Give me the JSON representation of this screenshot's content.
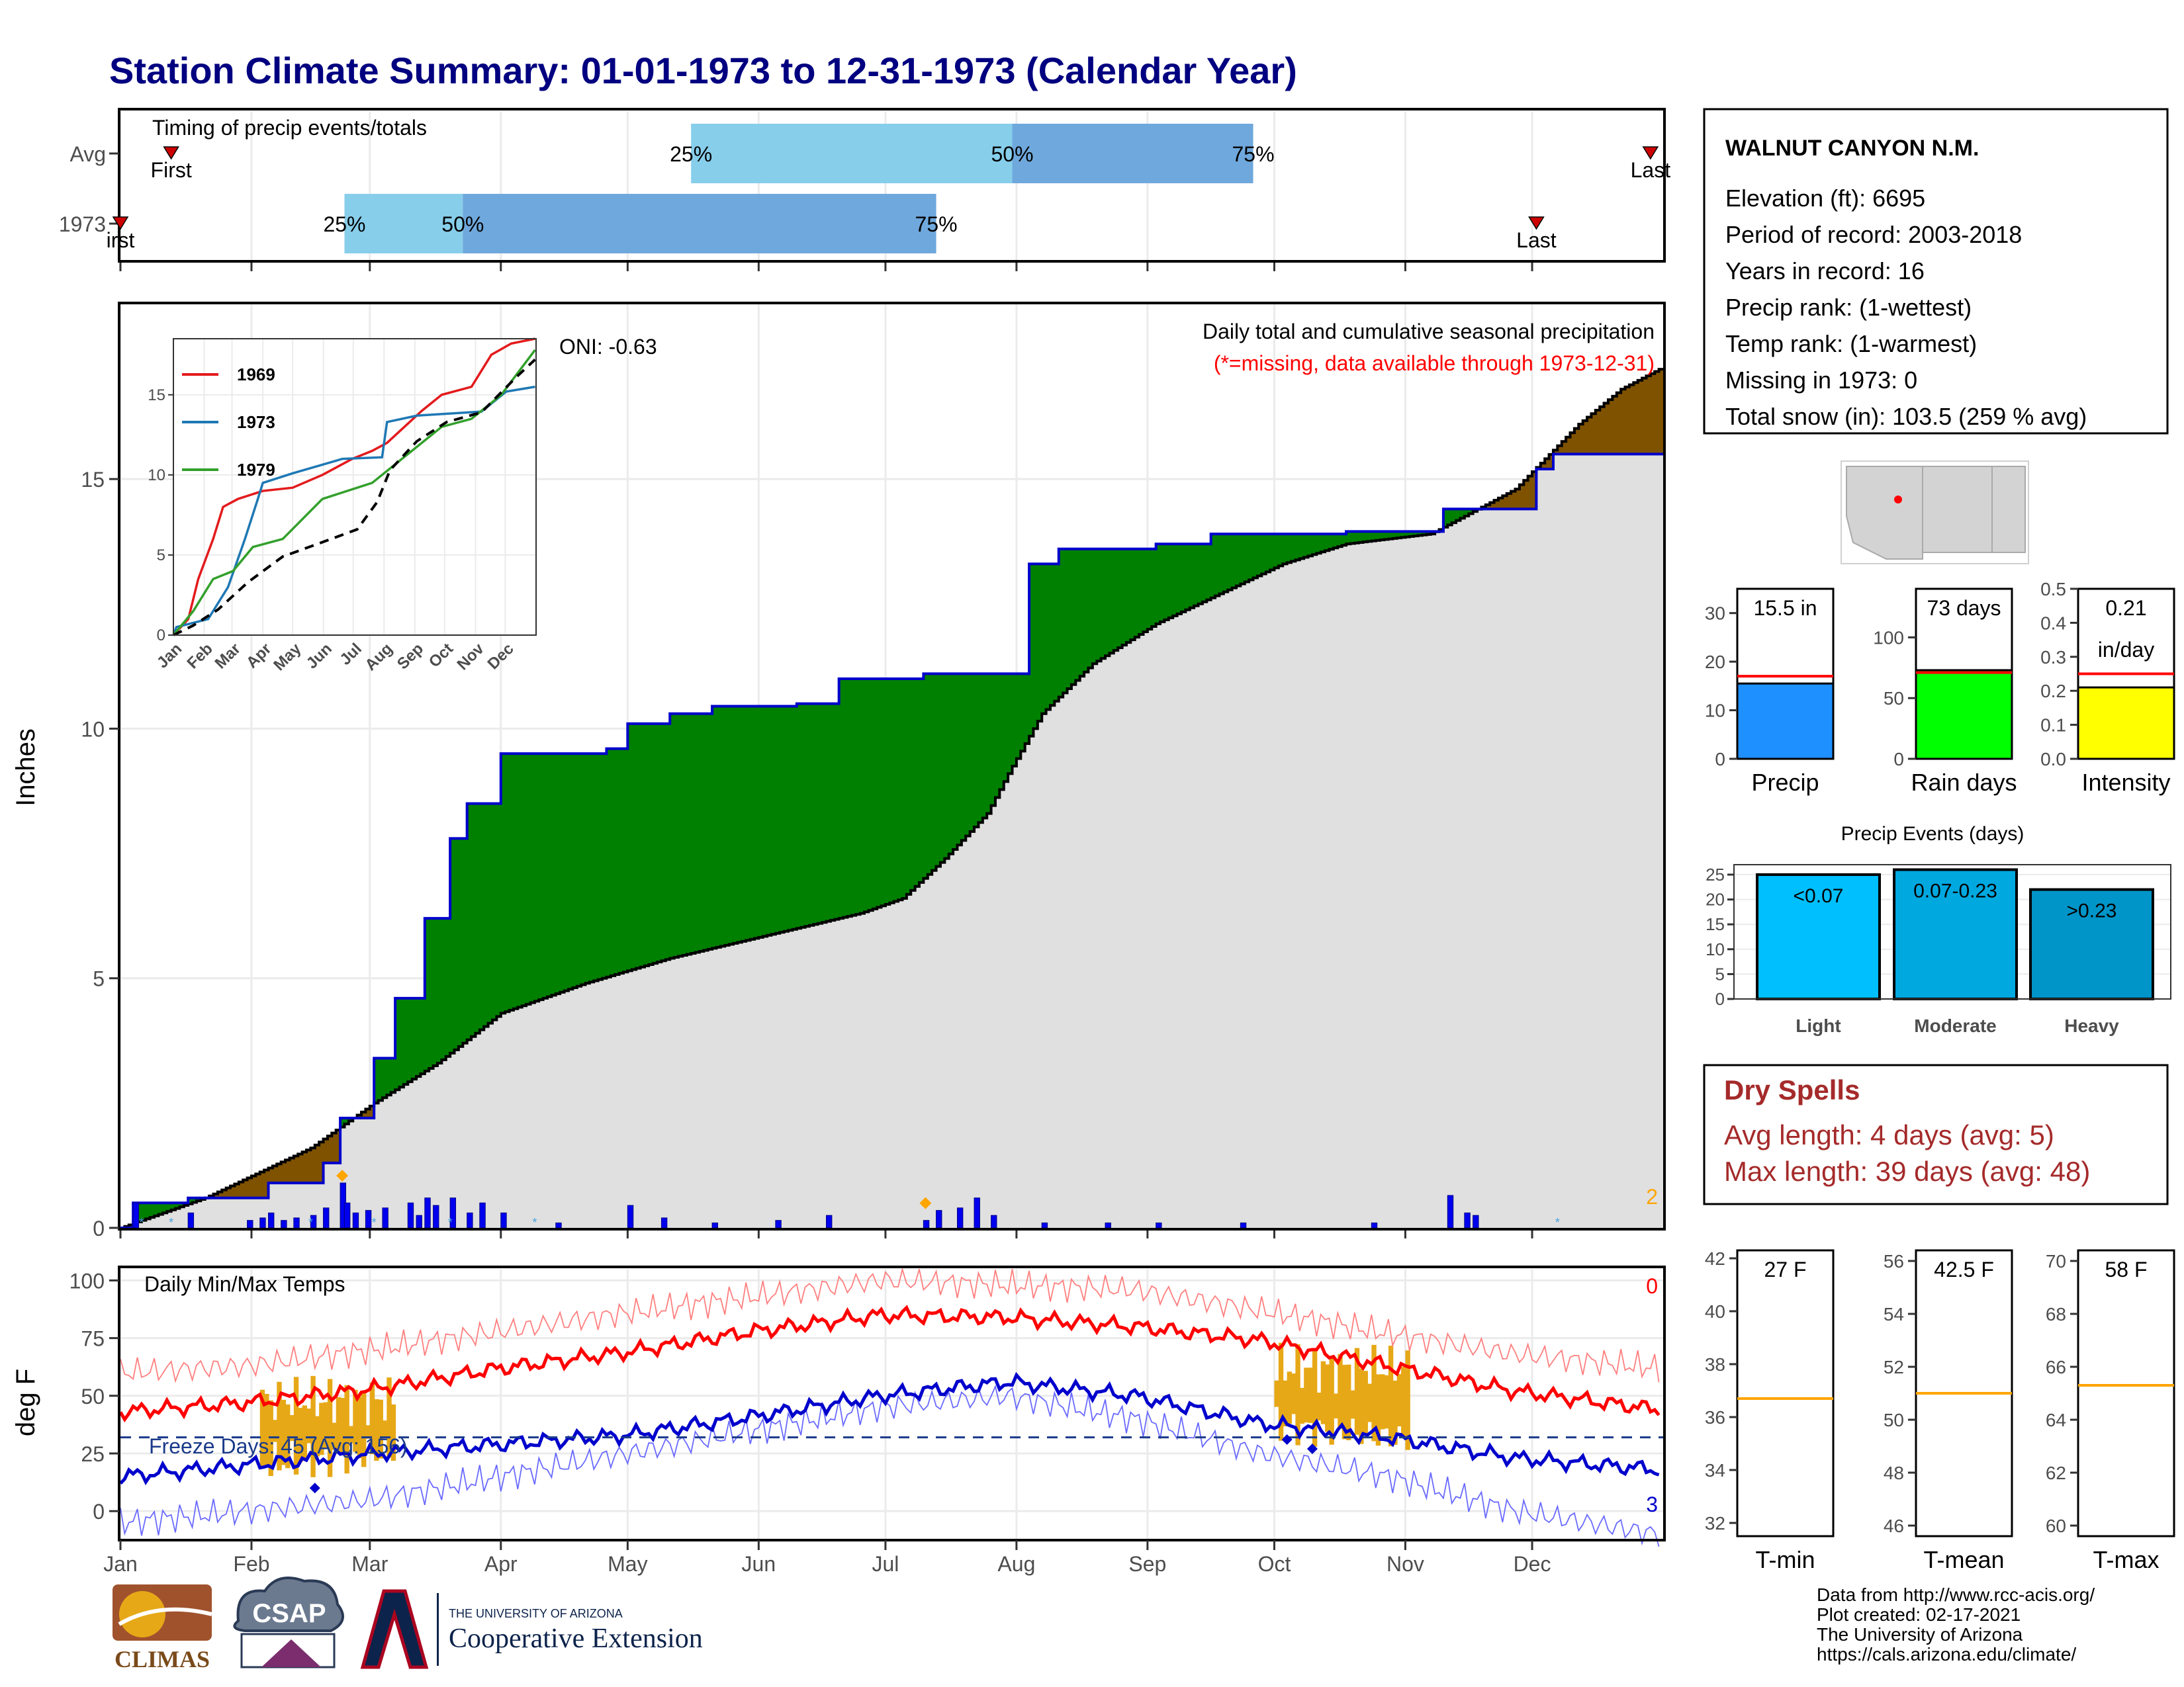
{
  "title": "Station Climate Summary: 01-01-1973 to 12-31-1973 (Calendar Year)",
  "station": {
    "name": "WALNUT CANYON N.M.",
    "lines": [
      "Elevation (ft): 6695",
      "Period of record: 2003-2018",
      "Years in record: 16",
      "Precip rank:  (1-wettest)",
      "Temp rank:  (1-warmest)",
      "Missing in 1973: 0",
      "Total snow (in): 103.5 (259 % avg)"
    ]
  },
  "colors": {
    "title": "#000080",
    "wet": "#008000",
    "dry": "#7f5200",
    "avg_fill": "#e0e0e0",
    "cum_line": "#0000cc",
    "tmax": "#ff0000",
    "tmin": "#0000cc",
    "freeze": "#e6a817",
    "timing_light": "#87ceeb",
    "timing_dark": "#6fa8dc",
    "dry_spells": "#a52a2a",
    "marker_red": "#cc0000",
    "orange": "#ffa500"
  },
  "months": [
    "Jan",
    "Feb",
    "Mar",
    "Apr",
    "May",
    "Jun",
    "Jul",
    "Aug",
    "Sep",
    "Oct",
    "Nov",
    "Dec"
  ],
  "timing": {
    "title": "Timing of precip events/totals",
    "rows": [
      {
        "label": "Avg",
        "first_day": 12,
        "q25": 135,
        "q50": 211,
        "q75": 268,
        "last_day": 362,
        "first_text": "First",
        "last_text": "Last",
        "p25_text": "25%",
        "p50_text": "50%",
        "p75_text": "75%"
      },
      {
        "label": "1973",
        "first_day": 0,
        "q25": 53,
        "q50": 81,
        "q75": 193,
        "last_day": 335,
        "first_text": "irst",
        "last_text": "Last",
        "p25_text": "25%",
        "p50_text": "50%",
        "p75_text": "75%"
      }
    ]
  },
  "precip_panel": {
    "ylabel": "Inches",
    "oni": "ONI: -0.63",
    "annotation1": "Daily total and cumulative seasonal precipitation",
    "annotation2": "(*=missing, data available through 1973-12-31)",
    "corner_count": "2",
    "yticks": [
      "0",
      "5",
      "10",
      "15"
    ]
  },
  "inset": {
    "series_names": [
      "1969",
      "1973",
      "1979"
    ],
    "series_colors": [
      "#e31a1c",
      "#1f78b4",
      "#33a02c"
    ],
    "yticks": [
      "0",
      "5",
      "10",
      "15"
    ]
  },
  "temp_panel": {
    "ylabel": "deg F",
    "label": "Daily Min/Max Temps",
    "freeze_text": "Freeze Days: 45 (Avg: 156)",
    "corner_top": "0",
    "corner_bottom": "3",
    "yticks": [
      "0",
      "25",
      "50",
      "75",
      "100"
    ]
  },
  "mini_bars": [
    {
      "label": "Precip",
      "value_text": "15.5 in",
      "value": 15.5,
      "avg": 17,
      "ymax": 35,
      "color": "#1e90ff",
      "yticks": [
        "0",
        "10",
        "20",
        "30"
      ]
    },
    {
      "label": "Rain days",
      "value_text": "73 days",
      "value": 73,
      "avg": 71,
      "ymax": 140,
      "color": "#00ff00",
      "yticks": [
        "0",
        "50",
        "100"
      ]
    },
    {
      "label": "Intensity",
      "value_text": "0.21",
      "value_text2": "in/day",
      "value": 0.21,
      "avg": 0.25,
      "ymax": 0.5,
      "color": "#ffff00",
      "yticks": [
        "0.0",
        "0.1",
        "0.2",
        "0.3",
        "0.4",
        "0.5"
      ]
    }
  ],
  "events": {
    "title": "Precip Events (days)",
    "categories": [
      "Light",
      "Moderate",
      "Heavy"
    ],
    "bar_labels": [
      "<0.07",
      "0.07-0.23",
      ">0.23"
    ],
    "values": [
      25,
      26,
      22
    ],
    "yticks": [
      "0",
      "5",
      "10",
      "15",
      "20",
      "25"
    ]
  },
  "dry_spells": {
    "title": "Dry Spells",
    "line1": "Avg length: 4 days (avg: 5)",
    "line2": "Max length: 39 days (avg: 48)"
  },
  "temp_boxes": [
    {
      "label": "T-min",
      "value_text": "27 F",
      "yticks": [
        "32",
        "34",
        "36",
        "38",
        "40",
        "42"
      ]
    },
    {
      "label": "T-mean",
      "value_text": "42.5 F",
      "yticks": [
        "46",
        "48",
        "50",
        "52",
        "54",
        "56"
      ]
    },
    {
      "label": "T-max",
      "value_text": "58 F",
      "yticks": [
        "60",
        "62",
        "64",
        "66",
        "68",
        "70"
      ]
    }
  ],
  "footer": {
    "lines": [
      "Data from http://www.rcc-acis.org/",
      "Plot created: 02-17-2021",
      "The University of Arizona",
      "https://cals.arizona.edu/climate/"
    ],
    "climas": "CLIMAS",
    "csap": "CSAP",
    "ua_small": "THE UNIVERSITY OF ARIZONA",
    "ua_big": "Cooperative Extension"
  },
  "chart_data": {
    "type": "area",
    "title": "Daily total and cumulative seasonal precipitation",
    "ylabel": "Inches",
    "ylim": [
      0,
      18.5
    ],
    "x_unit": "day of year",
    "cumulative_1973": [
      [
        0,
        0
      ],
      [
        3,
        0.5
      ],
      [
        16,
        0.6
      ],
      [
        35,
        0.9
      ],
      [
        48,
        1.3
      ],
      [
        52,
        2.2
      ],
      [
        60,
        3.4
      ],
      [
        65,
        4.6
      ],
      [
        72,
        6.2
      ],
      [
        78,
        7.8
      ],
      [
        82,
        8.5
      ],
      [
        90,
        9.5
      ],
      [
        115,
        9.6
      ],
      [
        120,
        10.1
      ],
      [
        130,
        10.3
      ],
      [
        140,
        10.45
      ],
      [
        160,
        10.5
      ],
      [
        170,
        11.0
      ],
      [
        190,
        11.1
      ],
      [
        210,
        11.1
      ],
      [
        215,
        13.3
      ],
      [
        222,
        13.6
      ],
      [
        245,
        13.7
      ],
      [
        258,
        13.9
      ],
      [
        290,
        13.95
      ],
      [
        310,
        13.95
      ],
      [
        313,
        14.4
      ],
      [
        335,
        15.2
      ],
      [
        339,
        15.5
      ],
      [
        364,
        15.5
      ]
    ],
    "cumulative_avg": [
      [
        0,
        0
      ],
      [
        20,
        0.6
      ],
      [
        45,
        1.6
      ],
      [
        60,
        2.5
      ],
      [
        75,
        3.3
      ],
      [
        90,
        4.3
      ],
      [
        110,
        4.9
      ],
      [
        130,
        5.4
      ],
      [
        150,
        5.8
      ],
      [
        165,
        6.1
      ],
      [
        175,
        6.3
      ],
      [
        185,
        6.6
      ],
      [
        195,
        7.4
      ],
      [
        205,
        8.3
      ],
      [
        210,
        9.1
      ],
      [
        218,
        10.3
      ],
      [
        230,
        11.3
      ],
      [
        245,
        12.1
      ],
      [
        260,
        12.7
      ],
      [
        275,
        13.3
      ],
      [
        290,
        13.7
      ],
      [
        310,
        13.9
      ],
      [
        330,
        14.8
      ],
      [
        345,
        16.1
      ],
      [
        355,
        16.8
      ],
      [
        364,
        17.2
      ]
    ],
    "daily_precip_1973": [
      [
        3,
        0.5
      ],
      [
        16,
        0.3
      ],
      [
        30,
        0.15
      ],
      [
        33,
        0.2
      ],
      [
        35,
        0.3
      ],
      [
        38,
        0.15
      ],
      [
        41,
        0.2
      ],
      [
        45,
        0.25
      ],
      [
        48,
        0.4
      ],
      [
        52,
        0.9
      ],
      [
        53,
        0.5
      ],
      [
        55,
        0.3
      ],
      [
        58,
        0.35
      ],
      [
        62,
        0.4
      ],
      [
        68,
        0.5
      ],
      [
        70,
        0.25
      ],
      [
        72,
        0.6
      ],
      [
        74,
        0.45
      ],
      [
        78,
        0.6
      ],
      [
        82,
        0.3
      ],
      [
        85,
        0.5
      ],
      [
        90,
        0.3
      ],
      [
        103,
        0.1
      ],
      [
        120,
        0.45
      ],
      [
        128,
        0.2
      ],
      [
        140,
        0.1
      ],
      [
        155,
        0.15
      ],
      [
        167,
        0.25
      ],
      [
        190,
        0.15
      ],
      [
        193,
        0.35
      ],
      [
        198,
        0.4
      ],
      [
        202,
        0.6
      ],
      [
        206,
        0.25
      ],
      [
        218,
        0.1
      ],
      [
        233,
        0.1
      ],
      [
        245,
        0.1
      ],
      [
        265,
        0.1
      ],
      [
        296,
        0.1
      ],
      [
        314,
        0.65
      ],
      [
        318,
        0.3
      ],
      [
        320,
        0.25
      ]
    ],
    "inset": {
      "type": "line",
      "yticks": [
        0,
        5,
        10,
        15
      ],
      "series": [
        {
          "name": "1969",
          "values": [
            [
              0,
              0
            ],
            [
              15,
              1
            ],
            [
              25,
              3.5
            ],
            [
              40,
              6
            ],
            [
              50,
              8
            ],
            [
              65,
              8.5
            ],
            [
              90,
              9
            ],
            [
              120,
              9.2
            ],
            [
              150,
              10
            ],
            [
              180,
              11
            ],
            [
              200,
              11.5
            ],
            [
              215,
              12
            ],
            [
              250,
              14
            ],
            [
              270,
              15
            ],
            [
              300,
              15.5
            ],
            [
              320,
              17.5
            ],
            [
              340,
              18.2
            ],
            [
              364,
              18.5
            ]
          ]
        },
        {
          "name": "1973",
          "values": [
            [
              0,
              0
            ],
            [
              3,
              0.5
            ],
            [
              35,
              1
            ],
            [
              55,
              3
            ],
            [
              72,
              6
            ],
            [
              85,
              8.5
            ],
            [
              90,
              9.5
            ],
            [
              120,
              10.1
            ],
            [
              170,
              11
            ],
            [
              210,
              11.1
            ],
            [
              215,
              13.3
            ],
            [
              245,
              13.7
            ],
            [
              310,
              13.95
            ],
            [
              335,
              15.2
            ],
            [
              364,
              15.5
            ]
          ]
        },
        {
          "name": "1979",
          "values": [
            [
              0,
              0
            ],
            [
              20,
              1.5
            ],
            [
              40,
              3.5
            ],
            [
              60,
              4
            ],
            [
              80,
              5.5
            ],
            [
              110,
              6
            ],
            [
              150,
              8.5
            ],
            [
              200,
              9.5
            ],
            [
              230,
              11
            ],
            [
              250,
              12
            ],
            [
              270,
              13
            ],
            [
              300,
              13.5
            ],
            [
              330,
              15
            ],
            [
              364,
              17.8
            ]
          ]
        },
        {
          "name": "",
          "values": [
            [
              0,
              0
            ],
            [
              20,
              0.6
            ],
            [
              45,
              1.6
            ],
            [
              75,
              3.3
            ],
            [
              110,
              4.9
            ],
            [
              150,
              5.8
            ],
            [
              185,
              6.6
            ],
            [
              205,
              8.3
            ],
            [
              218,
              10.3
            ],
            [
              245,
              12.1
            ],
            [
              275,
              13.3
            ],
            [
              310,
              13.9
            ],
            [
              345,
              16.1
            ],
            [
              364,
              17.2
            ]
          ]
        }
      ]
    },
    "temperature": {
      "ylim": [
        -12,
        105
      ],
      "tmax_smooth": [
        [
          0,
          43
        ],
        [
          30,
          47
        ],
        [
          60,
          53
        ],
        [
          90,
          62
        ],
        [
          120,
          69
        ],
        [
          150,
          78
        ],
        [
          180,
          85
        ],
        [
          210,
          84
        ],
        [
          240,
          80
        ],
        [
          270,
          74
        ],
        [
          300,
          63
        ],
        [
          330,
          52
        ],
        [
          364,
          44
        ]
      ],
      "tmin_smooth": [
        [
          0,
          15
        ],
        [
          30,
          20
        ],
        [
          60,
          25
        ],
        [
          90,
          29
        ],
        [
          120,
          33
        ],
        [
          150,
          41
        ],
        [
          180,
          50
        ],
        [
          210,
          56
        ],
        [
          240,
          50
        ],
        [
          270,
          38
        ],
        [
          300,
          32
        ],
        [
          330,
          23
        ],
        [
          364,
          18
        ]
      ],
      "tmax_record": [
        [
          0,
          60
        ],
        [
          30,
          63
        ],
        [
          60,
          70
        ],
        [
          90,
          78
        ],
        [
          120,
          86
        ],
        [
          150,
          93
        ],
        [
          180,
          100
        ],
        [
          210,
          98
        ],
        [
          240,
          96
        ],
        [
          270,
          87
        ],
        [
          300,
          77
        ],
        [
          330,
          68
        ],
        [
          364,
          62
        ]
      ],
      "tmin_record": [
        [
          0,
          -5
        ],
        [
          30,
          0
        ],
        [
          60,
          5
        ],
        [
          90,
          15
        ],
        [
          120,
          25
        ],
        [
          150,
          35
        ],
        [
          180,
          45
        ],
        [
          210,
          50
        ],
        [
          240,
          40
        ],
        [
          270,
          25
        ],
        [
          300,
          15
        ],
        [
          330,
          0
        ],
        [
          364,
          -10
        ]
      ],
      "freeze_line": 32,
      "freeze_bars_1": [
        33,
        64
      ],
      "freeze_bars_2": [
        273,
        304
      ]
    }
  }
}
